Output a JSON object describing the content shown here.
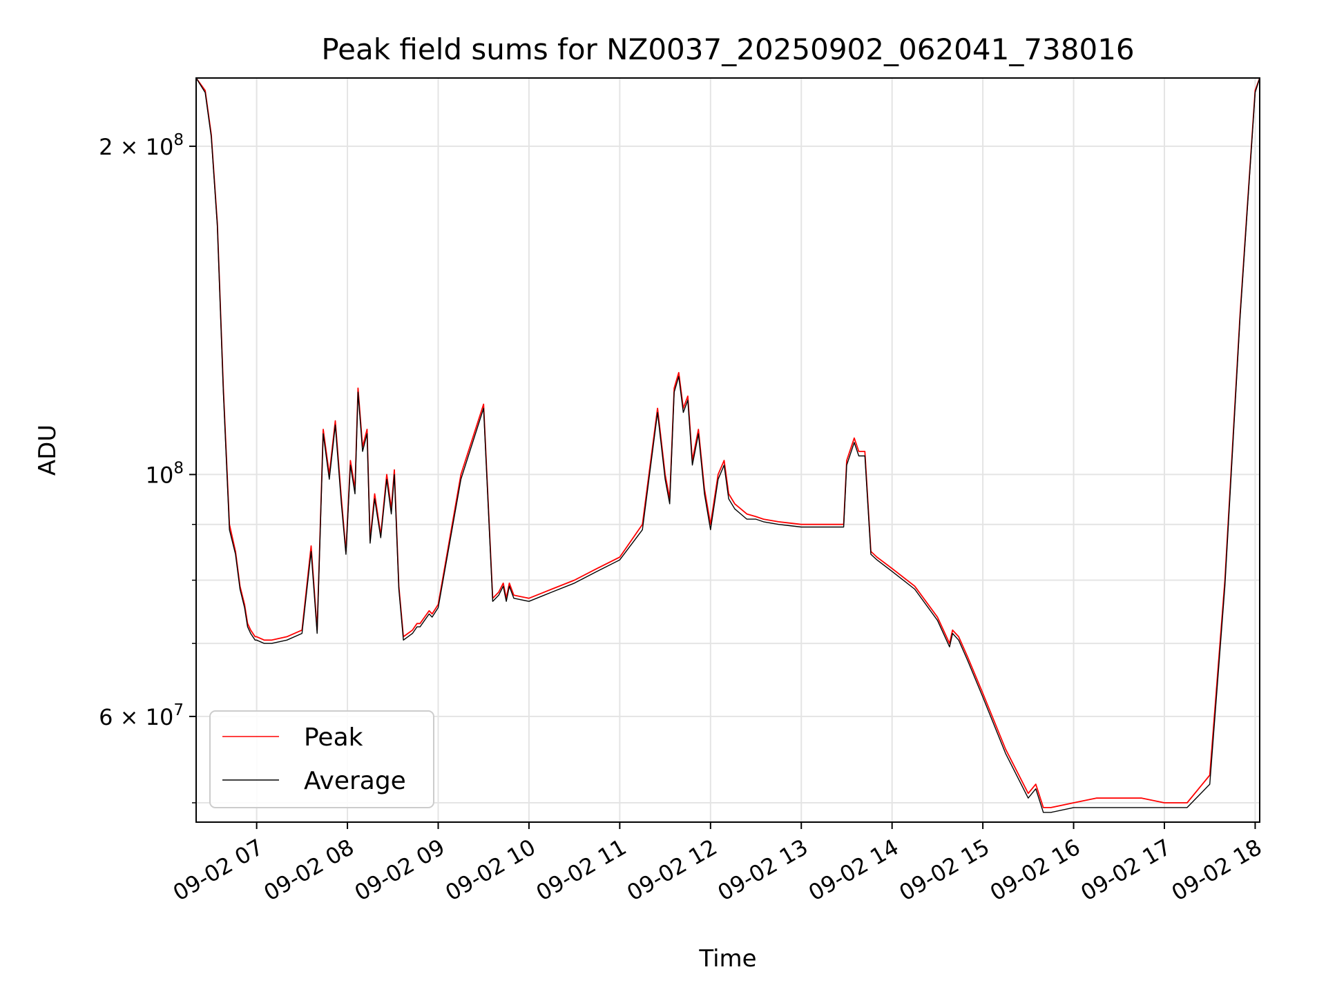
{
  "chart_data": {
    "type": "line",
    "title": "Peak field sums for NZ0037_20250902_062041_738016",
    "xlabel": "Time",
    "ylabel": "ADU",
    "yscale": "log",
    "grid": true,
    "legend_position": "lower-left",
    "xlim": [
      "09-02 06:20",
      "09-02 18:03"
    ],
    "ylim": [
      48000000,
      231000000
    ],
    "x_ticks": [
      "09-02 07",
      "09-02 08",
      "09-02 09",
      "09-02 10",
      "09-02 11",
      "09-02 12",
      "09-02 13",
      "09-02 14",
      "09-02 15",
      "09-02 16",
      "09-02 17",
      "09-02 18"
    ],
    "y_ticks": [
      {
        "value": 200000000,
        "mantissa": "2",
        "times": "×",
        "base": "10",
        "exp": "8"
      },
      {
        "value": 100000000,
        "mantissa": "",
        "times": "",
        "base": "10",
        "exp": "8"
      },
      {
        "value": 60000000,
        "mantissa": "6",
        "times": "×",
        "base": "10",
        "exp": "7"
      }
    ],
    "y_minor_ticks": [
      50000000,
      70000000,
      80000000,
      90000000
    ],
    "time_unit": "hours",
    "series": [
      {
        "name": "Peak",
        "color": "#ff0000",
        "x": [
          "09-02 06:20",
          "09-02 06:26",
          "09-02 06:30",
          "09-02 06:34",
          "09-02 06:38",
          "09-02 06:42",
          "09-02 06:46",
          "09-02 06:49",
          "09-02 06:52",
          "09-02 06:54",
          "09-02 06:56",
          "09-02 06:59",
          "09-02 07:00",
          "09-02 07:05",
          "09-02 07:10",
          "09-02 07:20",
          "09-02 07:30",
          "09-02 07:36",
          "09-02 07:40",
          "09-02 07:44",
          "09-02 07:48",
          "09-02 07:52",
          "09-02 07:56",
          "09-02 07:59",
          "09-02 08:02",
          "09-02 08:05",
          "09-02 08:07",
          "09-02 08:10",
          "09-02 08:13",
          "09-02 08:15",
          "09-02 08:18",
          "09-02 08:22",
          "09-02 08:26",
          "09-02 08:29",
          "09-02 08:31",
          "09-02 08:34",
          "09-02 08:37",
          "09-02 08:40",
          "09-02 08:43",
          "09-02 08:46",
          "09-02 08:48",
          "09-02 08:51",
          "09-02 08:54",
          "09-02 08:56",
          "09-02 09:00",
          "09-02 09:15",
          "09-02 09:30",
          "09-02 09:36",
          "09-02 09:40",
          "09-02 09:43",
          "09-02 09:45",
          "09-02 09:47",
          "09-02 09:50",
          "09-02 10:00",
          "09-02 10:10",
          "09-02 10:15",
          "09-02 10:30",
          "09-02 10:45",
          "09-02 11:00",
          "09-02 11:15",
          "09-02 11:25",
          "09-02 11:30",
          "09-02 11:33",
          "09-02 11:36",
          "09-02 11:39",
          "09-02 11:42",
          "09-02 11:45",
          "09-02 11:48",
          "09-02 11:52",
          "09-02 11:56",
          "09-02 12:00",
          "09-02 12:05",
          "09-02 12:09",
          "09-02 12:12",
          "09-02 12:16",
          "09-02 12:20",
          "09-02 12:24",
          "09-02 12:30",
          "09-02 12:35",
          "09-02 12:45",
          "09-02 13:00",
          "09-02 13:20",
          "09-02 13:28",
          "09-02 13:30",
          "09-02 13:35",
          "09-02 13:38",
          "09-02 13:42",
          "09-02 13:46",
          "09-02 13:50",
          "09-02 14:00",
          "09-02 14:15",
          "09-02 14:30",
          "09-02 14:38",
          "09-02 14:40",
          "09-02 14:44",
          "09-02 14:50",
          "09-02 15:00",
          "09-02 15:15",
          "09-02 15:30",
          "09-02 15:35",
          "09-02 15:40",
          "09-02 15:45",
          "09-02 16:00",
          "09-02 16:15",
          "09-02 16:30",
          "09-02 16:45",
          "09-02 17:00",
          "09-02 17:15",
          "09-02 17:30",
          "09-02 17:40",
          "09-02 17:50",
          "09-02 18:00",
          "09-02 18:03"
        ],
        "values": [
          231000000,
          225000000,
          205000000,
          170000000,
          120000000,
          90000000,
          85000000,
          79000000,
          76000000,
          73000000,
          72000000,
          71000000,
          71000000,
          70500000,
          70500000,
          71000000,
          72000000,
          86000000,
          72000000,
          110000000,
          100000000,
          112000000,
          95000000,
          85000000,
          103000000,
          97000000,
          120000000,
          106000000,
          110000000,
          87000000,
          96000000,
          88000000,
          100000000,
          93000000,
          101000000,
          79000000,
          71000000,
          71500000,
          72000000,
          73000000,
          73000000,
          74000000,
          75000000,
          74500000,
          76000000,
          100000000,
          116000000,
          77000000,
          78000000,
          79500000,
          77000000,
          79500000,
          77500000,
          77000000,
          78000000,
          78500000,
          80000000,
          82000000,
          84000000,
          90000000,
          115000000,
          100000000,
          95000000,
          120000000,
          124000000,
          115000000,
          118000000,
          103000000,
          110000000,
          97000000,
          90000000,
          100000000,
          103000000,
          96000000,
          94000000,
          93000000,
          92000000,
          91500000,
          91000000,
          90500000,
          90000000,
          90000000,
          90000000,
          103000000,
          108000000,
          105000000,
          105000000,
          85000000,
          84000000,
          82000000,
          79000000,
          74000000,
          70000000,
          72000000,
          71000000,
          68000000,
          63000000,
          56000000,
          51000000,
          52000000,
          49500000,
          49500000,
          50000000,
          50500000,
          50500000,
          50500000,
          50000000,
          50000000,
          53000000,
          80000000,
          140000000,
          225000000,
          231000000
        ]
      },
      {
        "name": "Average",
        "color": "#000000",
        "x": [
          "09-02 06:20",
          "09-02 06:26",
          "09-02 06:30",
          "09-02 06:34",
          "09-02 06:38",
          "09-02 06:42",
          "09-02 06:46",
          "09-02 06:49",
          "09-02 06:52",
          "09-02 06:54",
          "09-02 06:56",
          "09-02 06:59",
          "09-02 07:00",
          "09-02 07:05",
          "09-02 07:10",
          "09-02 07:20",
          "09-02 07:30",
          "09-02 07:36",
          "09-02 07:40",
          "09-02 07:44",
          "09-02 07:48",
          "09-02 07:52",
          "09-02 07:56",
          "09-02 07:59",
          "09-02 08:02",
          "09-02 08:05",
          "09-02 08:07",
          "09-02 08:10",
          "09-02 08:13",
          "09-02 08:15",
          "09-02 08:18",
          "09-02 08:22",
          "09-02 08:26",
          "09-02 08:29",
          "09-02 08:31",
          "09-02 08:34",
          "09-02 08:37",
          "09-02 08:40",
          "09-02 08:43",
          "09-02 08:46",
          "09-02 08:48",
          "09-02 08:51",
          "09-02 08:54",
          "09-02 08:56",
          "09-02 09:00",
          "09-02 09:15",
          "09-02 09:30",
          "09-02 09:36",
          "09-02 09:40",
          "09-02 09:43",
          "09-02 09:45",
          "09-02 09:47",
          "09-02 09:50",
          "09-02 10:00",
          "09-02 10:10",
          "09-02 10:15",
          "09-02 10:30",
          "09-02 10:45",
          "09-02 11:00",
          "09-02 11:15",
          "09-02 11:25",
          "09-02 11:30",
          "09-02 11:33",
          "09-02 11:36",
          "09-02 11:39",
          "09-02 11:42",
          "09-02 11:45",
          "09-02 11:48",
          "09-02 11:52",
          "09-02 11:56",
          "09-02 12:00",
          "09-02 12:05",
          "09-02 12:09",
          "09-02 12:12",
          "09-02 12:16",
          "09-02 12:20",
          "09-02 12:24",
          "09-02 12:30",
          "09-02 12:35",
          "09-02 12:45",
          "09-02 13:00",
          "09-02 13:20",
          "09-02 13:28",
          "09-02 13:30",
          "09-02 13:35",
          "09-02 13:38",
          "09-02 13:42",
          "09-02 13:46",
          "09-02 13:50",
          "09-02 14:00",
          "09-02 14:15",
          "09-02 14:30",
          "09-02 14:38",
          "09-02 14:40",
          "09-02 14:44",
          "09-02 14:50",
          "09-02 15:00",
          "09-02 15:15",
          "09-02 15:30",
          "09-02 15:35",
          "09-02 15:40",
          "09-02 15:45",
          "09-02 16:00",
          "09-02 16:15",
          "09-02 16:30",
          "09-02 16:45",
          "09-02 17:00",
          "09-02 17:15",
          "09-02 17:30",
          "09-02 17:40",
          "09-02 17:50",
          "09-02 18:00",
          "09-02 18:03"
        ],
        "values": [
          231000000,
          224000000,
          204000000,
          169000000,
          119000000,
          89000000,
          84500000,
          78500000,
          75500000,
          72500000,
          71500000,
          70500000,
          70500000,
          70000000,
          70000000,
          70500000,
          71500000,
          85000000,
          71500000,
          109000000,
          99000000,
          111000000,
          94000000,
          84500000,
          102000000,
          96000000,
          119000000,
          105000000,
          109000000,
          86500000,
          95000000,
          87500000,
          99000000,
          92000000,
          100000000,
          78500000,
          70500000,
          71000000,
          71500000,
          72500000,
          72500000,
          73500000,
          74500000,
          74000000,
          75500000,
          99000000,
          115000000,
          76500000,
          77500000,
          79000000,
          76500000,
          79000000,
          77000000,
          76500000,
          77500000,
          78000000,
          79500000,
          81500000,
          83500000,
          89000000,
          114000000,
          99000000,
          94000000,
          119000000,
          123000000,
          114000000,
          117000000,
          102000000,
          109000000,
          96000000,
          89000000,
          99000000,
          102000000,
          95000000,
          93000000,
          92000000,
          91000000,
          91000000,
          90500000,
          90000000,
          89500000,
          89500000,
          89500000,
          102000000,
          107000000,
          104000000,
          104000000,
          84500000,
          83500000,
          81500000,
          78500000,
          73500000,
          69500000,
          71500000,
          70500000,
          67500000,
          62500000,
          55500000,
          50500000,
          51500000,
          49000000,
          49000000,
          49500000,
          49500000,
          49500000,
          49500000,
          49500000,
          49500000,
          52000000,
          79000000,
          139000000,
          224000000,
          231000000
        ]
      }
    ]
  }
}
